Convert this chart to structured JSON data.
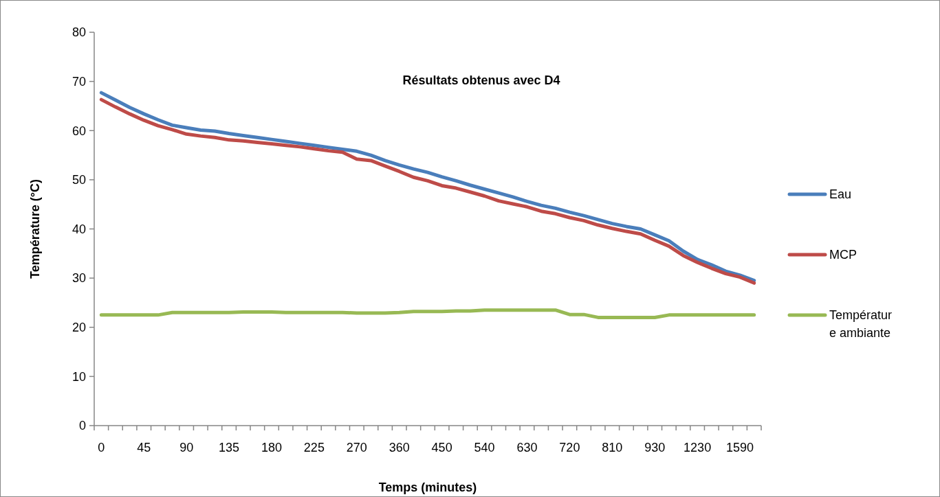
{
  "chart_data": {
    "type": "line",
    "title": "Résultats obtenus avec D4",
    "xlabel": "Temps (minutes)",
    "ylabel": "Température (°C)",
    "categories": [
      "0",
      null,
      null,
      "45",
      null,
      null,
      "90",
      null,
      null,
      "135",
      null,
      null,
      "180",
      null,
      null,
      "225",
      null,
      null,
      "270",
      null,
      null,
      "360",
      null,
      null,
      "450",
      null,
      null,
      "540",
      null,
      null,
      "630",
      null,
      null,
      "720",
      null,
      null,
      "810",
      null,
      null,
      "930",
      null,
      null,
      "1230",
      null,
      null,
      "1590",
      null
    ],
    "ylim": [
      0,
      80
    ],
    "yticks": [
      0,
      10,
      20,
      30,
      40,
      50,
      60,
      70,
      80
    ],
    "grid": false,
    "legend": "right",
    "marker": "none",
    "line_style": "solid",
    "series": [
      {
        "name": "Eau",
        "color": "#4a7ebb",
        "values": [
          67.7,
          66.2,
          64.7,
          63.4,
          62.2,
          61.1,
          60.6,
          60.1,
          59.9,
          59.4,
          59.0,
          58.6,
          58.2,
          57.8,
          57.4,
          57.0,
          56.6,
          56.2,
          55.8,
          55.0,
          53.9,
          53.0,
          52.2,
          51.5,
          50.6,
          49.8,
          48.9,
          48.1,
          47.3,
          46.5,
          45.6,
          44.8,
          44.2,
          43.4,
          42.7,
          41.9,
          41.1,
          40.5,
          40.0,
          38.8,
          37.6,
          35.5,
          33.8,
          32.7,
          31.4,
          30.6,
          29.5
        ]
      },
      {
        "name": "MCP",
        "color": "#be4b48",
        "values": [
          66.3,
          64.8,
          63.4,
          62.1,
          61.0,
          60.2,
          59.3,
          58.9,
          58.6,
          58.1,
          57.9,
          57.6,
          57.3,
          57.0,
          56.7,
          56.3,
          55.9,
          55.6,
          54.2,
          53.9,
          52.8,
          51.7,
          50.5,
          49.8,
          48.8,
          48.3,
          47.5,
          46.7,
          45.7,
          45.1,
          44.5,
          43.6,
          43.1,
          42.3,
          41.7,
          40.8,
          40.1,
          39.5,
          39.0,
          37.7,
          36.5,
          34.6,
          33.2,
          32.0,
          30.9,
          30.2,
          29.0
        ]
      },
      {
        "name": "Température ambiante",
        "color": "#98b954",
        "values": [
          22.5,
          22.5,
          22.5,
          22.5,
          22.5,
          23.0,
          23.0,
          23.0,
          23.0,
          23.0,
          23.1,
          23.1,
          23.1,
          23.0,
          23.0,
          23.0,
          23.0,
          23.0,
          22.9,
          22.9,
          22.9,
          23.0,
          23.2,
          23.2,
          23.2,
          23.3,
          23.3,
          23.5,
          23.5,
          23.5,
          23.5,
          23.5,
          23.5,
          22.6,
          22.6,
          22.0,
          22.0,
          22.0,
          22.0,
          22.0,
          22.5,
          22.5,
          22.5,
          22.5,
          22.5,
          22.5,
          22.5
        ]
      }
    ]
  }
}
